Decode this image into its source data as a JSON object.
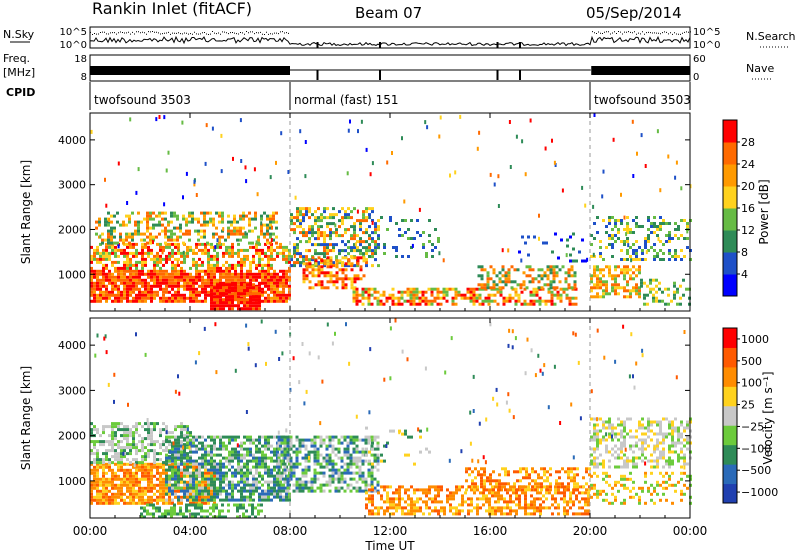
{
  "header": {
    "station": "Rankin Inlet (fitACF)",
    "beam": "Beam 07",
    "date": "05/Sep/2014"
  },
  "param_panels": {
    "nsky_label": "N.Sky",
    "nsky_ticks": [
      "10^5",
      "10^0"
    ],
    "nsearch_label": "N.Search",
    "nsearch_ticks": [
      "10^5",
      "10^0"
    ],
    "freq_label_1": "Freq.",
    "freq_label_2": "[MHz]",
    "freq_ticks": [
      "18",
      "8"
    ],
    "nave_label": "Nave",
    "nave_ticks": [
      "60",
      "0"
    ],
    "cpid_label": "CPID",
    "cpid_segments": [
      {
        "label": "twofsound 3503",
        "start_hr": 0,
        "end_hr": 8
      },
      {
        "label": "normal (fast) 151",
        "start_hr": 8,
        "end_hr": 20
      },
      {
        "label": "twofsound 3503",
        "start_hr": 20,
        "end_hr": 24
      }
    ]
  },
  "chart_data": [
    {
      "type": "heatmap",
      "parameter": "Power",
      "ylabel": "Slant Range [km]",
      "ylim": [
        180,
        4600
      ],
      "yticks": [
        1000,
        2000,
        3000,
        4000
      ],
      "xlim_hours": [
        0,
        24
      ],
      "colorbar_label": "Power [dB]",
      "colorbar_ticks": [
        "4",
        "8",
        "12",
        "16",
        "20",
        "24",
        "28"
      ],
      "colorbar_colors": [
        "#0000ff",
        "#1e50c8",
        "#2e8b57",
        "#66bb44",
        "#ffd21e",
        "#ff9a00",
        "#ff6a00",
        "#ff0000"
      ]
    },
    {
      "type": "heatmap",
      "parameter": "Velocity",
      "ylabel": "Slant Range [km]",
      "ylim": [
        180,
        4600
      ],
      "yticks": [
        1000,
        2000,
        3000,
        4000
      ],
      "xlim_hours": [
        0,
        24
      ],
      "colorbar_label": "Velocity [m s⁻¹]",
      "colorbar_ticks": [
        "1000",
        "500",
        "100",
        "25",
        "−25",
        "−100",
        "−500",
        "−1000"
      ],
      "colorbar_colors": [
        "#2040b0",
        "#2a6ab8",
        "#2e8b57",
        "#6ccb3c",
        "#c8c8c8",
        "#ffd21e",
        "#ff8c00",
        "#ff5a00",
        "#ff0000"
      ]
    }
  ],
  "x_axis": {
    "tick_labels": [
      "00:00",
      "04:00",
      "08:00",
      "12:00",
      "16:00",
      "20:00",
      "00:00"
    ],
    "label": "Time UT"
  }
}
